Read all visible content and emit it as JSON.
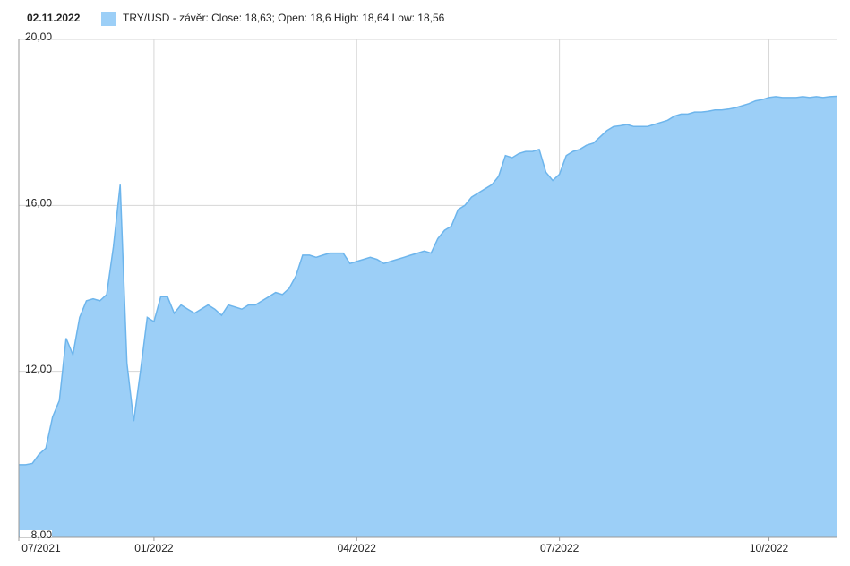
{
  "chart_data": {
    "type": "area",
    "date": "02.11.2022",
    "categories": [
      "07/2021",
      null,
      null,
      null,
      null,
      null,
      null,
      null,
      null,
      null,
      null,
      null,
      null,
      null,
      null,
      null,
      null,
      null,
      null,
      null,
      "01/2022",
      null,
      null,
      null,
      null,
      null,
      null,
      null,
      null,
      null,
      null,
      null,
      null,
      null,
      null,
      null,
      null,
      null,
      null,
      null,
      null,
      null,
      null,
      null,
      null,
      null,
      null,
      null,
      null,
      null,
      "04/2022",
      null,
      null,
      null,
      null,
      null,
      null,
      null,
      null,
      null,
      null,
      null,
      null,
      null,
      null,
      null,
      null,
      null,
      null,
      null,
      null,
      null,
      null,
      null,
      null,
      null,
      null,
      null,
      null,
      null,
      "07/2022",
      null,
      null,
      null,
      null,
      null,
      null,
      null,
      null,
      null,
      null,
      null,
      null,
      null,
      null,
      null,
      null,
      null,
      null,
      null,
      null,
      null,
      null,
      null,
      null,
      null,
      null,
      null,
      null,
      null,
      null,
      "10/2022",
      null,
      null,
      null,
      null,
      null,
      null,
      null,
      null,
      null,
      null
    ],
    "series": [
      {
        "name": "TRY/USD - závěr: Close: 18,63; Open: 18,6 High: 18,64 Low: 18,56",
        "color": "#9ccff7",
        "line_color": "#6db5ec",
        "values": [
          9.75,
          9.75,
          9.78,
          10.0,
          10.15,
          10.9,
          11.3,
          12.8,
          12.4,
          13.3,
          13.7,
          13.75,
          13.7,
          13.85,
          15.0,
          16.5,
          12.2,
          10.8,
          12.0,
          13.3,
          13.2,
          13.8,
          13.8,
          13.4,
          13.6,
          13.5,
          13.4,
          13.5,
          13.6,
          13.5,
          13.35,
          13.6,
          13.55,
          13.5,
          13.6,
          13.6,
          13.7,
          13.8,
          13.9,
          13.85,
          14.0,
          14.3,
          14.8,
          14.8,
          14.75,
          14.8,
          14.85,
          14.85,
          14.85,
          14.6,
          14.65,
          14.7,
          14.75,
          14.7,
          14.6,
          14.65,
          14.7,
          14.75,
          14.8,
          14.85,
          14.9,
          14.85,
          15.2,
          15.4,
          15.5,
          15.9,
          16.0,
          16.2,
          16.3,
          16.4,
          16.5,
          16.7,
          17.2,
          17.15,
          17.25,
          17.3,
          17.3,
          17.35,
          16.8,
          16.6,
          16.75,
          17.2,
          17.3,
          17.35,
          17.45,
          17.5,
          17.65,
          17.8,
          17.9,
          17.92,
          17.95,
          17.9,
          17.9,
          17.9,
          17.95,
          18.0,
          18.05,
          18.15,
          18.2,
          18.2,
          18.25,
          18.25,
          18.27,
          18.3,
          18.3,
          18.32,
          18.35,
          18.4,
          18.45,
          18.52,
          18.55,
          18.6,
          18.62,
          18.6,
          18.6,
          18.6,
          18.62,
          18.6,
          18.62,
          18.6,
          18.62,
          18.63
        ]
      }
    ],
    "ylim": [
      8,
      20
    ],
    "yticks": [
      {
        "value": 8,
        "label": "8,00"
      },
      {
        "value": 12,
        "label": "12,00"
      },
      {
        "value": 16,
        "label": "16,00"
      },
      {
        "value": 20,
        "label": "20,00"
      }
    ],
    "grid": true
  }
}
